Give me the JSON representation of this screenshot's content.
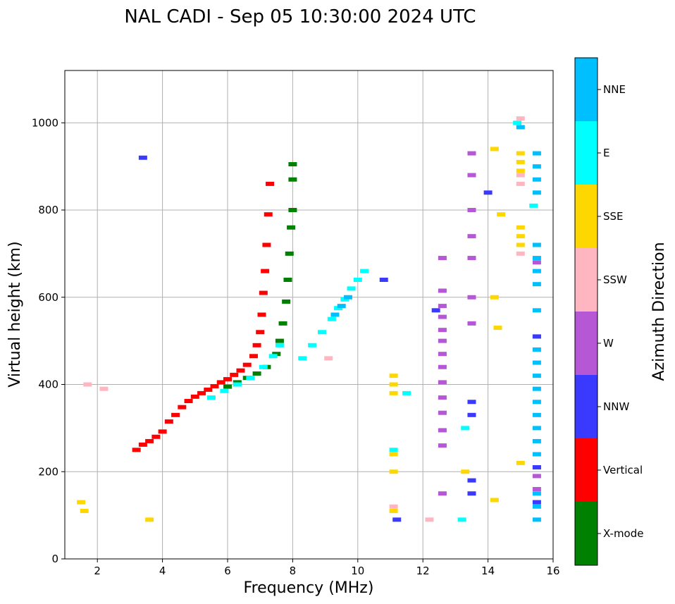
{
  "chart_data": {
    "type": "scatter",
    "title": "NAL CADI - Sep 05 10:30:00 2024 UTC",
    "xlabel": "Frequency (MHz)",
    "ylabel": "Virtual height (km)",
    "xlim": [
      1,
      16
    ],
    "ylim": [
      0,
      1120
    ],
    "xticks": [
      2,
      4,
      6,
      8,
      10,
      12,
      14,
      16
    ],
    "yticks": [
      0,
      200,
      400,
      600,
      800,
      1000
    ],
    "grid": true,
    "colorbar": {
      "label": "Azimuth Direction",
      "categories": [
        {
          "name": "X-mode",
          "color": "#008000"
        },
        {
          "name": "Vertical",
          "color": "#ff0000"
        },
        {
          "name": "NNW",
          "color": "#3a3aff"
        },
        {
          "name": "W",
          "color": "#b657d6"
        },
        {
          "name": "SSW",
          "color": "#ffb6c1"
        },
        {
          "name": "SSE",
          "color": "#ffd700"
        },
        {
          "name": "E",
          "color": "#00ffff"
        },
        {
          "name": "NNE",
          "color": "#00bfff"
        }
      ]
    },
    "traces": [
      {
        "name": "Vertical",
        "points": [
          [
            3.2,
            250
          ],
          [
            3.4,
            262
          ],
          [
            3.6,
            270
          ],
          [
            3.8,
            280
          ],
          [
            4.0,
            292
          ],
          [
            4.2,
            315
          ],
          [
            4.4,
            330
          ],
          [
            4.6,
            348
          ],
          [
            4.8,
            362
          ],
          [
            5.0,
            372
          ],
          [
            5.2,
            380
          ],
          [
            5.4,
            388
          ],
          [
            5.6,
            396
          ],
          [
            5.8,
            405
          ],
          [
            6.0,
            412
          ],
          [
            6.2,
            422
          ],
          [
            6.4,
            432
          ],
          [
            6.6,
            445
          ],
          [
            6.8,
            465
          ],
          [
            6.9,
            490
          ],
          [
            7.0,
            520
          ],
          [
            7.05,
            560
          ],
          [
            7.1,
            610
          ],
          [
            7.15,
            660
          ],
          [
            7.2,
            720
          ],
          [
            7.25,
            790
          ],
          [
            7.3,
            860
          ]
        ]
      },
      {
        "name": "X-mode",
        "points": [
          [
            6.0,
            395
          ],
          [
            6.3,
            405
          ],
          [
            6.6,
            415
          ],
          [
            6.9,
            425
          ],
          [
            7.2,
            440
          ],
          [
            7.5,
            470
          ],
          [
            7.6,
            500
          ],
          [
            7.7,
            540
          ],
          [
            7.8,
            590
          ],
          [
            7.85,
            640
          ],
          [
            7.9,
            700
          ],
          [
            7.95,
            760
          ],
          [
            8.0,
            800
          ],
          [
            8.0,
            870
          ],
          [
            8.0,
            905
          ]
        ]
      },
      {
        "name": "E",
        "points": [
          [
            5.5,
            370
          ],
          [
            5.9,
            385
          ],
          [
            6.3,
            400
          ],
          [
            6.7,
            415
          ],
          [
            7.1,
            440
          ],
          [
            7.4,
            465
          ],
          [
            7.6,
            490
          ],
          [
            8.3,
            460
          ],
          [
            8.6,
            490
          ],
          [
            8.9,
            520
          ],
          [
            9.2,
            550
          ],
          [
            9.4,
            575
          ],
          [
            9.6,
            595
          ],
          [
            9.8,
            620
          ],
          [
            10.0,
            640
          ],
          [
            10.2,
            660
          ],
          [
            11.5,
            380
          ],
          [
            11.1,
            250
          ],
          [
            13.3,
            300
          ],
          [
            13.2,
            90
          ],
          [
            14.9,
            1000
          ],
          [
            15.4,
            810
          ]
        ]
      },
      {
        "name": "NNE",
        "points": [
          [
            9.3,
            560
          ],
          [
            9.5,
            580
          ],
          [
            9.7,
            600
          ],
          [
            15.5,
            720
          ],
          [
            15.5,
            690
          ],
          [
            15.5,
            660
          ],
          [
            15.5,
            630
          ],
          [
            15.5,
            570
          ],
          [
            15.5,
            510
          ],
          [
            15.5,
            480
          ],
          [
            15.5,
            450
          ],
          [
            15.5,
            420
          ],
          [
            15.5,
            390
          ],
          [
            15.5,
            360
          ],
          [
            15.5,
            330
          ],
          [
            15.5,
            300
          ],
          [
            15.5,
            270
          ],
          [
            15.5,
            240
          ],
          [
            15.5,
            210
          ],
          [
            15.5,
            150
          ],
          [
            15.5,
            120
          ],
          [
            15.5,
            90
          ],
          [
            15.5,
            870
          ],
          [
            15.5,
            840
          ],
          [
            15.5,
            900
          ],
          [
            15.5,
            930
          ],
          [
            15.0,
            990
          ]
        ]
      },
      {
        "name": "SSE",
        "points": [
          [
            1.5,
            130
          ],
          [
            1.6,
            110
          ],
          [
            3.6,
            90
          ],
          [
            11.1,
            420
          ],
          [
            11.1,
            400
          ],
          [
            11.1,
            380
          ],
          [
            11.1,
            240
          ],
          [
            11.1,
            200
          ],
          [
            11.1,
            110
          ],
          [
            15.0,
            930
          ],
          [
            15.0,
            910
          ],
          [
            15.0,
            890
          ],
          [
            15.0,
            760
          ],
          [
            15.0,
            740
          ],
          [
            15.0,
            720
          ],
          [
            14.2,
            940
          ],
          [
            14.4,
            790
          ],
          [
            14.2,
            600
          ],
          [
            14.3,
            530
          ],
          [
            14.2,
            135
          ],
          [
            15.0,
            220
          ],
          [
            13.3,
            200
          ]
        ]
      },
      {
        "name": "W",
        "points": [
          [
            12.6,
            690
          ],
          [
            12.6,
            615
          ],
          [
            12.6,
            580
          ],
          [
            12.6,
            555
          ],
          [
            12.6,
            525
          ],
          [
            12.6,
            500
          ],
          [
            12.6,
            470
          ],
          [
            12.6,
            440
          ],
          [
            12.6,
            405
          ],
          [
            12.6,
            370
          ],
          [
            12.6,
            335
          ],
          [
            12.6,
            295
          ],
          [
            12.6,
            260
          ],
          [
            12.6,
            150
          ],
          [
            13.5,
            930
          ],
          [
            13.5,
            880
          ],
          [
            13.5,
            800
          ],
          [
            13.5,
            740
          ],
          [
            13.5,
            690
          ],
          [
            13.5,
            600
          ],
          [
            13.5,
            540
          ],
          [
            15.5,
            680
          ],
          [
            15.5,
            190
          ],
          [
            15.5,
            160
          ]
        ]
      },
      {
        "name": "NNW",
        "points": [
          [
            3.4,
            920
          ],
          [
            10.8,
            640
          ],
          [
            12.4,
            570
          ],
          [
            13.5,
            360
          ],
          [
            13.5,
            330
          ],
          [
            13.5,
            180
          ],
          [
            13.5,
            150
          ],
          [
            14.0,
            840
          ],
          [
            15.5,
            510
          ],
          [
            15.5,
            210
          ],
          [
            15.5,
            130
          ],
          [
            11.2,
            90
          ]
        ]
      },
      {
        "name": "SSW",
        "points": [
          [
            1.7,
            400
          ],
          [
            2.2,
            390
          ],
          [
            9.1,
            460
          ],
          [
            12.2,
            90
          ],
          [
            15.0,
            1010
          ],
          [
            15.0,
            880
          ],
          [
            15.0,
            860
          ],
          [
            15.0,
            700
          ],
          [
            11.1,
            120
          ]
        ]
      }
    ]
  }
}
